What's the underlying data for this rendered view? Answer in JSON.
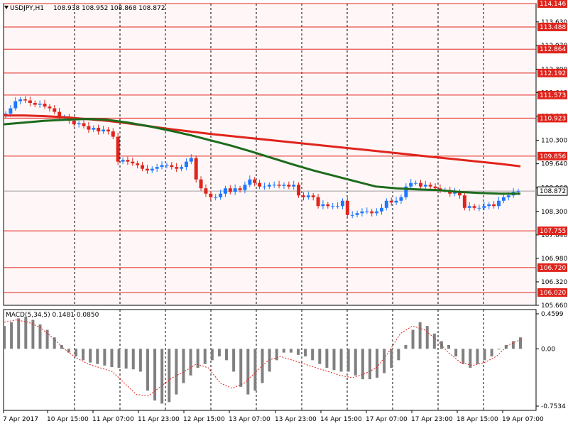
{
  "colors": {
    "background": "#fff7f7",
    "panel_bg": "#ffffff",
    "bull": "#1e78ff",
    "bear": "#e0241c",
    "wick_bull": "#1e78ff",
    "wick_bear": "#e0241c",
    "ma_fast": "#e0241c",
    "ma_slow": "#1c6b1c",
    "levels": "#e0241c",
    "macd_hist": "#808080",
    "macd_signal": "#e0241c",
    "grid": "#000000"
  },
  "header": {
    "symbol_text": "USDJPY,H1",
    "ohlc_text": "108.938 108.952 108.868 108.872"
  },
  "macd": {
    "label_text": "MACD(5,34,5) 0.1481 0.0850"
  },
  "chart_data": {
    "type": "candlestick",
    "symbol": "USDJPY",
    "timeframe": "H1",
    "open": 108.938,
    "high": 108.952,
    "low": 108.868,
    "close": 108.872,
    "current_price": "108.872",
    "ylim": [
      105.66,
      114.146
    ],
    "price_ticks": [
      "113.630",
      "112.970",
      "112.300",
      "111.640",
      "110.980",
      "110.300",
      "109.640",
      "108.960",
      "108.300",
      "107.640",
      "106.980",
      "106.320",
      "105.660"
    ],
    "horizontal_levels": [
      "114.146",
      "113.488",
      "112.864",
      "112.192",
      "111.573",
      "110.923",
      "109.856",
      "107.755",
      "106.720",
      "106.020"
    ],
    "x_tick_labels": [
      "7 Apr 2017",
      "10 Apr 15:00",
      "11 Apr 07:00",
      "11 Apr 23:00",
      "12 Apr 15:00",
      "13 Apr 07:00",
      "13 Apr 23:00",
      "14 Apr 15:00",
      "17 Apr 07:00",
      "17 Apr 23:00",
      "18 Apr 15:00",
      "19 Apr 07:00"
    ],
    "close_path": [
      111.05,
      111.2,
      111.4,
      111.45,
      111.42,
      111.35,
      111.3,
      111.33,
      111.25,
      111.2,
      111.1,
      110.95,
      110.95,
      110.85,
      110.75,
      110.78,
      110.7,
      110.6,
      110.65,
      110.55,
      110.6,
      110.55,
      110.4,
      109.7,
      109.75,
      109.7,
      109.65,
      109.6,
      109.5,
      109.45,
      109.5,
      109.55,
      109.6,
      109.6,
      109.55,
      109.5,
      109.55,
      109.7,
      109.8,
      109.2,
      108.95,
      108.8,
      108.7,
      108.7,
      108.8,
      108.95,
      108.85,
      108.95,
      108.9,
      109.05,
      109.2,
      109.1,
      109.0,
      109.0,
      109.05,
      109.05,
      109.02,
      109.05,
      109.0,
      109.05,
      108.75,
      108.7,
      108.75,
      108.7,
      108.45,
      108.5,
      108.45,
      108.45,
      108.45,
      108.6,
      108.2,
      108.2,
      108.25,
      108.3,
      108.3,
      108.25,
      108.3,
      108.4,
      108.6,
      108.55,
      108.6,
      108.7,
      109.0,
      109.1,
      109.1,
      109.0,
      109.05,
      109.0,
      108.95,
      108.9,
      108.9,
      108.8,
      108.85,
      108.75,
      108.4,
      108.45,
      108.4,
      108.4,
      108.45,
      108.5,
      108.45,
      108.6,
      108.7,
      108.75,
      108.85,
      108.87
    ],
    "ma_fast_path": [
      111.0,
      111.0,
      110.98,
      110.95,
      110.9,
      110.85,
      110.78,
      110.7,
      110.62,
      110.55,
      110.48,
      110.42,
      110.36,
      110.3,
      110.24,
      110.18,
      110.12,
      110.06,
      110.0,
      109.94,
      109.88,
      109.82,
      109.76,
      109.7,
      109.64,
      109.57
    ],
    "ma_slow_path": [
      110.75,
      110.8,
      110.85,
      110.88,
      110.9,
      110.88,
      110.8,
      110.7,
      110.58,
      110.45,
      110.3,
      110.15,
      109.98,
      109.8,
      109.62,
      109.45,
      109.3,
      109.15,
      109.0,
      108.95,
      108.92,
      108.9,
      108.85,
      108.82,
      108.8,
      108.8
    ],
    "macd_ylim": [
      -0.7534,
      0.4599
    ],
    "macd_ticks": [
      "0.4599",
      "0.00",
      "-0.7534"
    ],
    "macd_hist": [
      0.3,
      0.35,
      0.4,
      0.42,
      0.38,
      0.32,
      0.25,
      0.15,
      0.05,
      -0.05,
      -0.1,
      -0.15,
      -0.18,
      -0.2,
      -0.22,
      -0.24,
      -0.25,
      -0.26,
      -0.27,
      -0.3,
      -0.55,
      -0.68,
      -0.72,
      -0.7,
      -0.6,
      -0.45,
      -0.35,
      -0.25,
      -0.2,
      -0.15,
      -0.1,
      -0.15,
      -0.3,
      -0.5,
      -0.6,
      -0.55,
      -0.45,
      -0.3,
      -0.15,
      -0.05,
      -0.05,
      -0.08,
      -0.1,
      -0.15,
      -0.2,
      -0.25,
      -0.28,
      -0.3,
      -0.3,
      -0.35,
      -0.4,
      -0.4,
      -0.38,
      -0.32,
      -0.25,
      -0.15,
      0.05,
      0.25,
      0.35,
      0.3,
      0.2,
      0.1,
      0.05,
      -0.1,
      -0.2,
      -0.25,
      -0.2,
      -0.15,
      -0.1,
      0.0,
      0.05,
      0.1,
      0.15
    ],
    "macd_signal_path": [
      0.35,
      0.38,
      0.35,
      0.28,
      0.15,
      0.0,
      -0.12,
      -0.2,
      -0.25,
      -0.3,
      -0.45,
      -0.6,
      -0.62,
      -0.5,
      -0.38,
      -0.3,
      -0.2,
      -0.25,
      -0.45,
      -0.52,
      -0.45,
      -0.3,
      -0.15,
      -0.1,
      -0.15,
      -0.2,
      -0.25,
      -0.3,
      -0.35,
      -0.38,
      -0.33,
      -0.25,
      -0.05,
      0.2,
      0.3,
      0.25,
      0.12,
      -0.05,
      -0.18,
      -0.22,
      -0.18,
      -0.1,
      0.05,
      0.12
    ]
  }
}
